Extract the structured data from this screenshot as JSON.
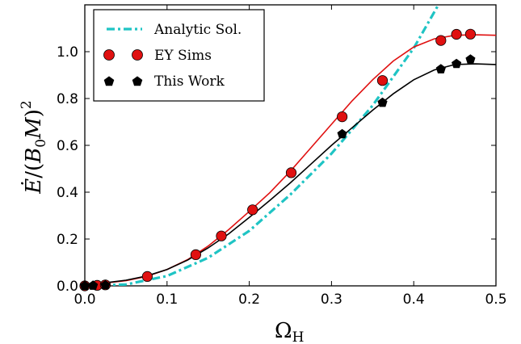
{
  "chart_data": {
    "type": "line",
    "xlabel": "Ω",
    "xlabel_sub": "H",
    "ylabel_parts": [
      "Ė",
      "/(",
      "B",
      "0",
      "M",
      ")",
      "2"
    ],
    "xlim": [
      0.0,
      0.5
    ],
    "ylim": [
      0.0,
      1.2
    ],
    "xticks": [
      "0.0",
      "0.1",
      "0.2",
      "0.3",
      "0.4",
      "0.5"
    ],
    "yticks": [
      "0.0",
      "0.2",
      "0.4",
      "0.6",
      "0.8",
      "1.0"
    ],
    "legend_position": "top-left",
    "grid": false,
    "series": [
      {
        "name": "Analytic Sol.",
        "style": "dash-dot line",
        "color": "#1fc4c4",
        "x": [
          0.0,
          0.05,
          0.1,
          0.15,
          0.2,
          0.25,
          0.3,
          0.35,
          0.4,
          0.43
        ],
        "y": [
          0.0,
          0.006,
          0.042,
          0.12,
          0.235,
          0.39,
          0.565,
          0.77,
          1.015,
          1.2
        ]
      },
      {
        "name": "EY Sims",
        "style": "red circles",
        "color": "#e01010",
        "x": [
          0.0,
          0.015,
          0.025,
          0.076,
          0.135,
          0.166,
          0.204,
          0.251,
          0.313,
          0.362,
          0.433,
          0.452,
          0.469
        ],
        "y": [
          0.0,
          0.002,
          0.004,
          0.04,
          0.133,
          0.213,
          0.325,
          0.483,
          0.722,
          0.877,
          1.048,
          1.074,
          1.075
        ]
      },
      {
        "name": "This Work",
        "style": "black pentagons",
        "color": "#000000",
        "x": [
          0.0,
          0.01,
          0.025,
          0.313,
          0.362,
          0.433,
          0.452,
          0.469
        ],
        "y": [
          0.0,
          0.001,
          0.003,
          0.648,
          0.782,
          0.925,
          0.948,
          0.967
        ]
      },
      {
        "name": "",
        "style": "red fit line",
        "color": "#e01010",
        "x": [
          0.0,
          0.025,
          0.05,
          0.075,
          0.1,
          0.125,
          0.15,
          0.175,
          0.2,
          0.225,
          0.25,
          0.275,
          0.3,
          0.325,
          0.35,
          0.375,
          0.4,
          0.425,
          0.45,
          0.475,
          0.5
        ],
        "y": [
          0.005,
          0.012,
          0.022,
          0.04,
          0.07,
          0.112,
          0.17,
          0.24,
          0.318,
          0.398,
          0.49,
          0.59,
          0.69,
          0.79,
          0.88,
          0.96,
          1.02,
          1.055,
          1.07,
          1.072,
          1.07
        ]
      },
      {
        "name": "",
        "style": "black fit line",
        "color": "#000000",
        "x": [
          0.0,
          0.025,
          0.05,
          0.075,
          0.1,
          0.125,
          0.15,
          0.175,
          0.2,
          0.225,
          0.25,
          0.275,
          0.3,
          0.325,
          0.35,
          0.375,
          0.4,
          0.425,
          0.45,
          0.475,
          0.5
        ],
        "y": [
          0.005,
          0.013,
          0.024,
          0.042,
          0.07,
          0.11,
          0.162,
          0.222,
          0.292,
          0.365,
          0.44,
          0.52,
          0.6,
          0.675,
          0.75,
          0.82,
          0.88,
          0.922,
          0.945,
          0.948,
          0.945
        ]
      }
    ]
  }
}
